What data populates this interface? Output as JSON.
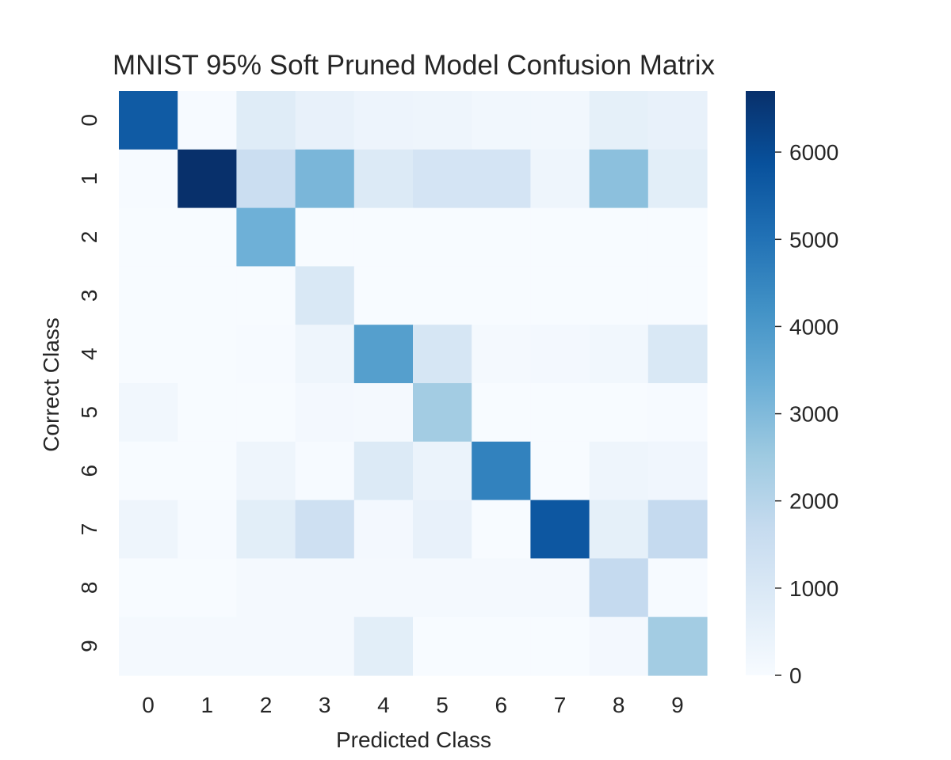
{
  "chart_data": {
    "type": "heatmap",
    "title": "MNIST 95% Soft Pruned Model Confusion Matrix",
    "xlabel": "Predicted Class",
    "ylabel": "Correct Class",
    "x_categories": [
      "0",
      "1",
      "2",
      "3",
      "4",
      "5",
      "6",
      "7",
      "8",
      "9"
    ],
    "y_categories": [
      "0",
      "1",
      "2",
      "3",
      "4",
      "5",
      "6",
      "7",
      "8",
      "9"
    ],
    "values": [
      [
        5600,
        50,
        800,
        500,
        350,
        300,
        200,
        200,
        600,
        500
      ],
      [
        50,
        6700,
        1500,
        3100,
        900,
        1200,
        1200,
        300,
        2800,
        700
      ],
      [
        0,
        0,
        3300,
        0,
        0,
        0,
        0,
        0,
        0,
        0
      ],
      [
        0,
        0,
        0,
        1000,
        0,
        0,
        0,
        0,
        0,
        0
      ],
      [
        0,
        0,
        50,
        300,
        3800,
        1100,
        100,
        150,
        200,
        1000
      ],
      [
        200,
        0,
        0,
        150,
        100,
        2400,
        0,
        0,
        0,
        50
      ],
      [
        0,
        0,
        300,
        50,
        900,
        400,
        4600,
        0,
        300,
        250
      ],
      [
        300,
        50,
        700,
        1400,
        150,
        500,
        0,
        5700,
        600,
        1700
      ],
      [
        0,
        0,
        100,
        100,
        100,
        100,
        100,
        100,
        1700,
        50
      ],
      [
        100,
        100,
        100,
        100,
        700,
        0,
        0,
        0,
        150,
        2400
      ]
    ],
    "colorbar": {
      "min": 0,
      "max": 6700,
      "ticks": [
        0,
        1000,
        2000,
        3000,
        4000,
        5000,
        6000
      ]
    },
    "colormap": "Blues",
    "colors": {
      "low": "#f7fbff",
      "high": "#08306b"
    },
    "grid": false
  }
}
